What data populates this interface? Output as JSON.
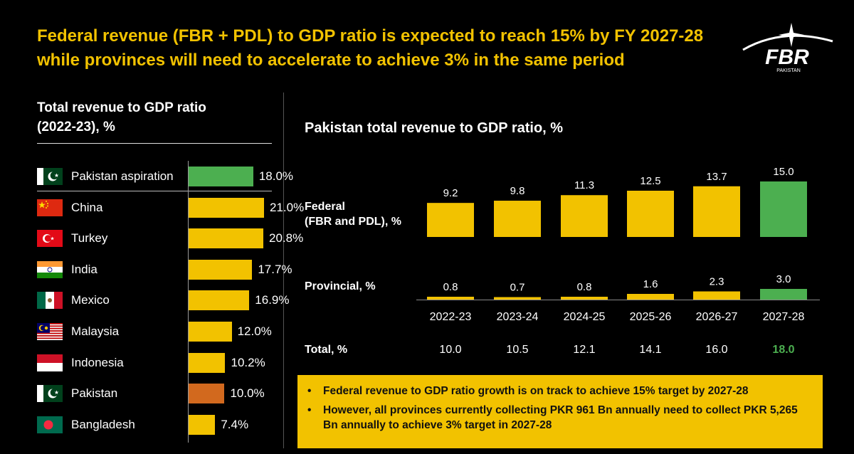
{
  "headline": [
    "Federal revenue (FBR + PDL) to GDP ratio is expected to reach 15% by FY 2027-28",
    "while provinces will need to accelerate to achieve 3% in the same period"
  ],
  "logo": {
    "text": "FBR",
    "subtext": "PAKISTAN"
  },
  "colors": {
    "accent": "#F2C200",
    "green": "#4CAF50",
    "orange": "#D2691E",
    "background": "#000000"
  },
  "chart_data": [
    {
      "type": "bar",
      "orientation": "horizontal",
      "title": "Total revenue to GDP ratio (2022-23), %",
      "title_lines": [
        "Total revenue to GDP ratio",
        "(2022-23), %"
      ],
      "xlim": [
        0,
        21
      ],
      "categories": [
        "Pakistan aspiration",
        "China",
        "Turkey",
        "India",
        "Mexico",
        "Malaysia",
        "Indonesia",
        "Pakistan",
        "Bangladesh"
      ],
      "values": [
        18.0,
        21.0,
        20.8,
        17.7,
        16.9,
        12.0,
        10.2,
        10.0,
        7.4
      ],
      "value_labels": [
        "18.0%",
        "21.0%",
        "20.8%",
        "17.7%",
        "16.9%",
        "12.0%",
        "10.2%",
        "10.0%",
        "7.4%"
      ],
      "flags": [
        "pakistan",
        "china",
        "turkey",
        "india",
        "mexico",
        "malaysia",
        "indonesia",
        "pakistan",
        "bangladesh"
      ],
      "bar_colors": [
        "#4CAF50",
        "#F2C200",
        "#F2C200",
        "#F2C200",
        "#F2C200",
        "#F2C200",
        "#F2C200",
        "#D2691E",
        "#F2C200"
      ]
    },
    {
      "type": "bar",
      "title": "Pakistan total revenue to GDP ratio, %",
      "categories": [
        "2022-23",
        "2023-24",
        "2024-25",
        "2025-26",
        "2026-27",
        "2027-28"
      ],
      "ylim": [
        0,
        15
      ],
      "series": [
        {
          "name": "Federal (FBR and PDL), %",
          "name_lines": [
            "Federal",
            "(FBR and PDL), %"
          ],
          "values": [
            9.2,
            9.8,
            11.3,
            12.5,
            13.7,
            15.0
          ],
          "labels": [
            "9.2",
            "9.8",
            "11.3",
            "12.5",
            "13.7",
            "15.0"
          ]
        },
        {
          "name": "Provincial, %",
          "name_lines": [
            "Provincial, %"
          ],
          "values": [
            0.8,
            0.7,
            0.8,
            1.6,
            2.3,
            3.0
          ],
          "labels": [
            "0.8",
            "0.7",
            "0.8",
            "1.6",
            "2.3",
            "3.0"
          ]
        }
      ],
      "highlight_category": "2027-28",
      "totals": {
        "label": "Total, %",
        "values": [
          "10.0",
          "10.5",
          "12.1",
          "14.1",
          "16.0",
          "18.0"
        ]
      }
    }
  ],
  "notes": [
    "Federal revenue to GDP ratio growth is on track to achieve 15% target by 2027-28",
    "However, all provinces currently collecting PKR 961 Bn annually need to collect PKR 5,265 Bn annually to achieve 3% target in 2027-28"
  ],
  "bullet_symbol": "•"
}
